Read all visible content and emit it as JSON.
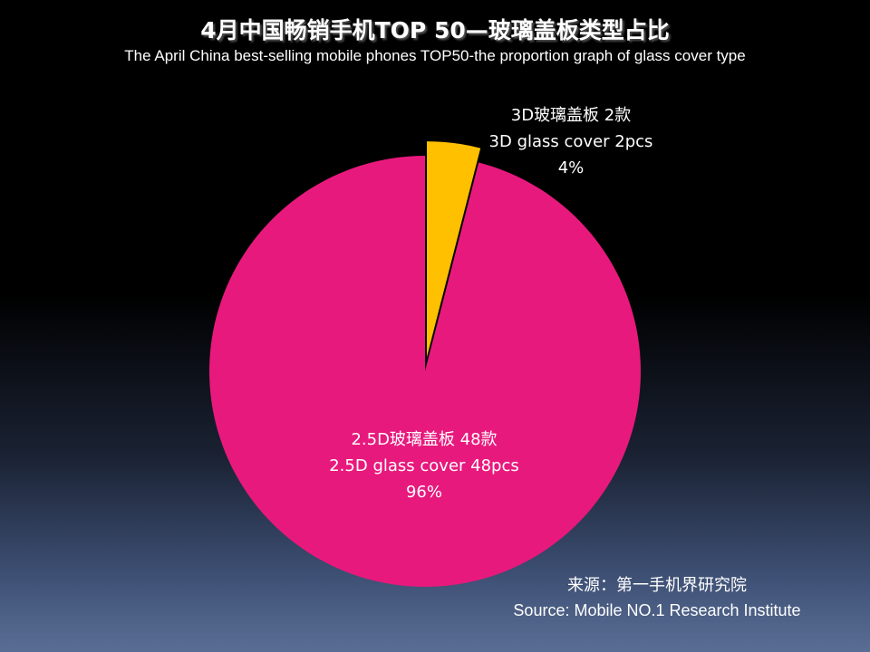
{
  "chart_data": {
    "type": "pie",
    "title": "4月中国畅销手机TOP 50—玻璃盖板类型占比",
    "subtitle": "The April China best-selling mobile phones TOP50-the proportion graph of glass cover type",
    "slices": [
      {
        "label_cn": "3D玻璃盖板 2款",
        "label_en": "3D glass cover 2pcs",
        "percent_label": "4%",
        "value": 2,
        "color": "#FFC000",
        "exploded": true
      },
      {
        "label_cn": "2.5D玻璃盖板 48款",
        "label_en": "2.5D glass cover 48pcs",
        "percent_label": "96%",
        "value": 48,
        "color": "#E8197D",
        "exploded": false
      }
    ]
  },
  "source": {
    "cn": "来源：第一手机界研究院",
    "en": "Source: Mobile NO.1 Research Institute"
  },
  "colors": {
    "background_top": "#000000",
    "background_bottom": "#5a6e95",
    "text": "#ffffff"
  }
}
